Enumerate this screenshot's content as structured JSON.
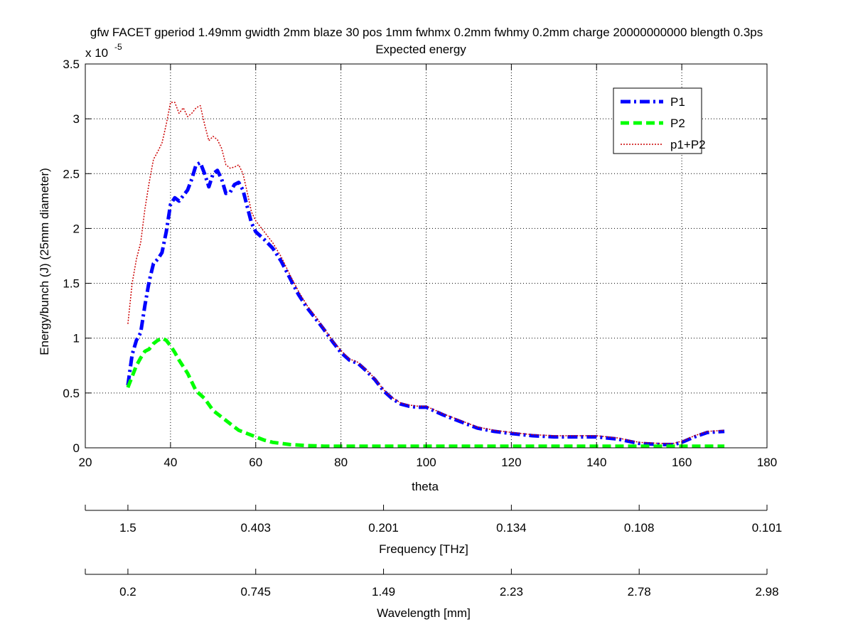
{
  "chart_data": {
    "type": "line",
    "title_line1": "gfw FACET gperiod 1.49mm gwidth 2mm blaze 30 pos 1mm fwhmx 0.2mm fwhmy 0.2mm charge 20000000000 blength 0.3ps",
    "title_line2": "Expected energy",
    "xlabel": "theta",
    "ylabel": "Energy/bunch (J)  (25mm diameter)",
    "y_exponent_base": "x 10",
    "y_exponent_power": "-5",
    "xlim": [
      20,
      180
    ],
    "ylim": [
      0,
      3.5
    ],
    "grid": true,
    "x_ticks": [
      "20",
      "40",
      "60",
      "80",
      "100",
      "120",
      "140",
      "160",
      "180"
    ],
    "y_ticks": [
      "0",
      "0.5",
      "1",
      "1.5",
      "2",
      "2.5",
      "3",
      "3.5"
    ],
    "legend_position": "top-right",
    "series": [
      {
        "name": "P1",
        "color": "#0000ff",
        "style": "dash-dot",
        "x": [
          30,
          31,
          32,
          33,
          34,
          35,
          36,
          37,
          38,
          39,
          40,
          41,
          42,
          43,
          44,
          45,
          46,
          47,
          48,
          49,
          50,
          51,
          52,
          53,
          54,
          55,
          56,
          57,
          58,
          59,
          60,
          62,
          64,
          66,
          68,
          70,
          72,
          74,
          76,
          78,
          80,
          82,
          84,
          86,
          88,
          90,
          92,
          94,
          96,
          98,
          100,
          104,
          108,
          112,
          116,
          120,
          125,
          130,
          135,
          140,
          145,
          150,
          155,
          158,
          160,
          163,
          166,
          170
        ],
        "y": [
          0.57,
          0.85,
          0.98,
          1.05,
          1.3,
          1.52,
          1.68,
          1.72,
          1.78,
          1.97,
          2.22,
          2.28,
          2.25,
          2.3,
          2.35,
          2.45,
          2.58,
          2.6,
          2.5,
          2.38,
          2.5,
          2.53,
          2.45,
          2.32,
          2.33,
          2.4,
          2.42,
          2.35,
          2.2,
          2.05,
          1.97,
          1.9,
          1.82,
          1.7,
          1.55,
          1.4,
          1.28,
          1.18,
          1.08,
          0.97,
          0.87,
          0.8,
          0.77,
          0.7,
          0.62,
          0.52,
          0.45,
          0.4,
          0.38,
          0.37,
          0.37,
          0.3,
          0.24,
          0.18,
          0.15,
          0.13,
          0.11,
          0.1,
          0.1,
          0.1,
          0.08,
          0.04,
          0.03,
          0.03,
          0.05,
          0.1,
          0.14,
          0.15
        ]
      },
      {
        "name": "P2",
        "color": "#00ff00",
        "style": "dashed",
        "x": [
          30,
          31,
          32,
          33,
          34,
          35,
          36,
          37,
          38,
          39,
          40,
          41,
          42,
          44,
          46,
          48,
          50,
          52,
          54,
          56,
          58,
          60,
          62,
          64,
          66,
          68,
          70,
          72,
          74,
          76,
          78,
          80,
          90,
          100,
          110,
          120,
          130,
          140,
          150,
          160,
          170
        ],
        "y": [
          0.55,
          0.65,
          0.75,
          0.82,
          0.88,
          0.9,
          0.95,
          0.98,
          1.0,
          0.98,
          0.93,
          0.87,
          0.8,
          0.68,
          0.52,
          0.45,
          0.34,
          0.28,
          0.22,
          0.16,
          0.13,
          0.1,
          0.07,
          0.05,
          0.04,
          0.03,
          0.025,
          0.02,
          0.018,
          0.015,
          0.015,
          0.015,
          0.015,
          0.015,
          0.015,
          0.015,
          0.015,
          0.015,
          0.015,
          0.015,
          0.015
        ]
      },
      {
        "name": "p1+P2",
        "color": "#cc0000",
        "style": "dotted",
        "x": [
          30,
          31,
          32,
          33,
          34,
          35,
          36,
          37,
          38,
          39,
          40,
          41,
          42,
          43,
          44,
          45,
          46,
          47,
          48,
          49,
          50,
          51,
          52,
          53,
          54,
          55,
          56,
          57,
          58,
          59,
          60,
          62,
          64,
          66,
          68,
          70,
          72,
          74,
          76,
          78,
          80,
          82,
          84,
          86,
          88,
          90,
          92,
          94,
          96,
          98,
          100,
          104,
          108,
          112,
          116,
          120,
          125,
          130,
          135,
          140,
          145,
          150,
          155,
          158,
          160,
          163,
          166,
          170
        ],
        "y": [
          1.13,
          1.5,
          1.72,
          1.87,
          2.18,
          2.42,
          2.63,
          2.7,
          2.78,
          2.95,
          3.15,
          3.15,
          3.05,
          3.1,
          3.02,
          3.05,
          3.1,
          3.12,
          2.95,
          2.8,
          2.84,
          2.81,
          2.73,
          2.58,
          2.55,
          2.56,
          2.58,
          2.5,
          2.33,
          2.15,
          2.07,
          1.97,
          1.87,
          1.74,
          1.58,
          1.43,
          1.3,
          1.2,
          1.09,
          0.98,
          0.89,
          0.81,
          0.78,
          0.71,
          0.63,
          0.53,
          0.46,
          0.41,
          0.39,
          0.38,
          0.38,
          0.31,
          0.25,
          0.19,
          0.16,
          0.14,
          0.12,
          0.11,
          0.11,
          0.11,
          0.09,
          0.05,
          0.04,
          0.04,
          0.06,
          0.11,
          0.15,
          0.16
        ]
      }
    ],
    "secondary_axes": [
      {
        "label": "Frequency [THz]",
        "tick_x": [
          30,
          60,
          90,
          120,
          150,
          180
        ],
        "tick_labels": [
          "1.5",
          "0.403",
          "0.201",
          "0.134",
          "0.108",
          "0.101"
        ]
      },
      {
        "label": "Wavelength [mm]",
        "tick_x": [
          30,
          60,
          90,
          120,
          150,
          180
        ],
        "tick_labels": [
          "0.2",
          "0.745",
          "1.49",
          "2.23",
          "2.78",
          "2.98"
        ]
      }
    ]
  }
}
